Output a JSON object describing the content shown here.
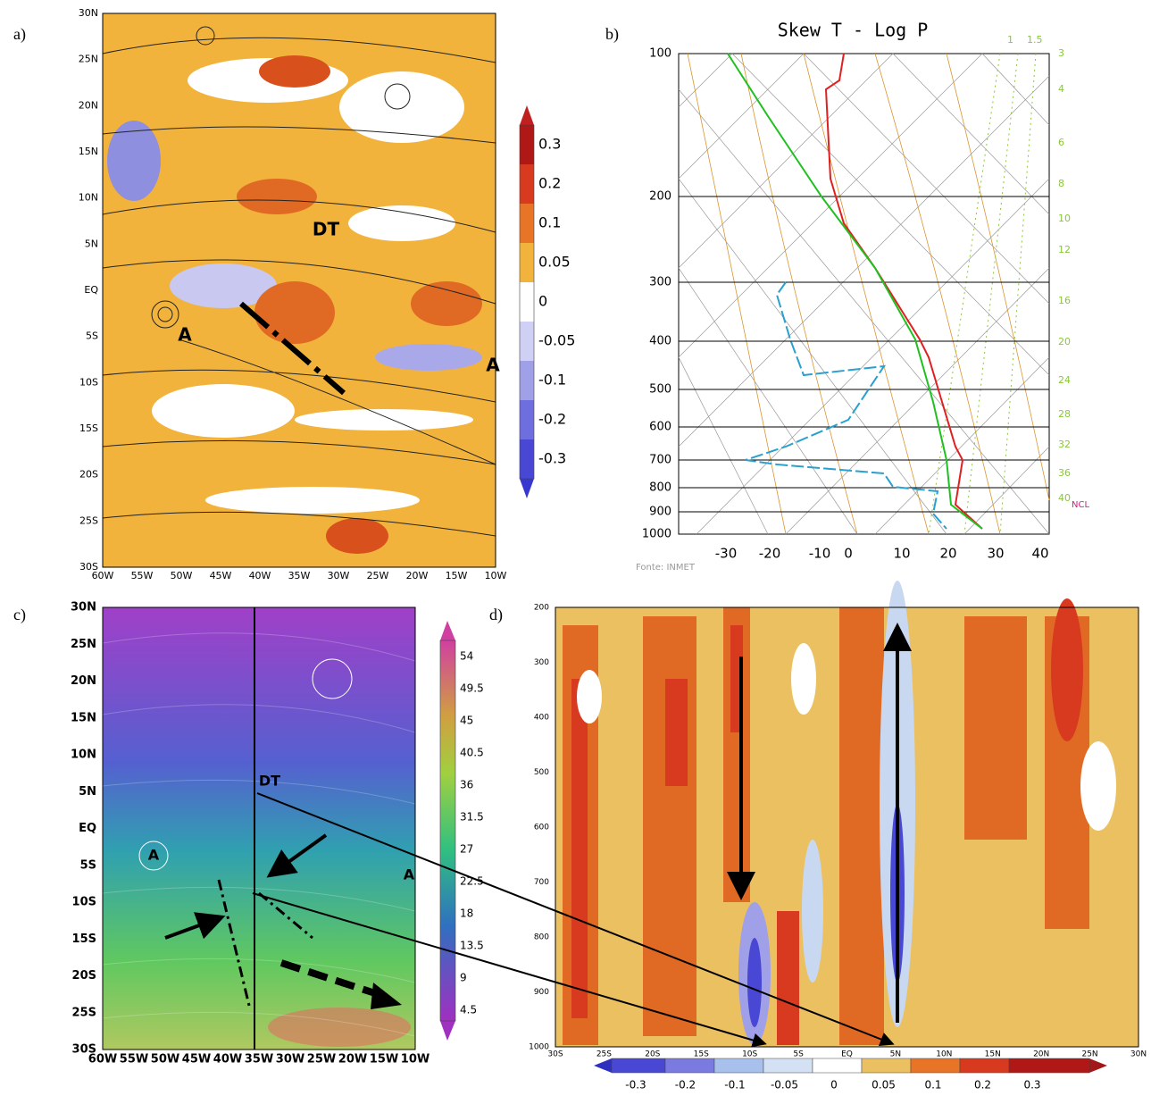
{
  "panels": [
    {
      "label": "a)",
      "lat_labels": [
        "30N",
        "25N",
        "20N",
        "15N",
        "10N",
        "5N",
        "EQ",
        "5S",
        "10S",
        "15S",
        "20S",
        "25S",
        "30S"
      ],
      "lon_labels": [
        "60W",
        "55W",
        "50W",
        "45W",
        "40W",
        "35W",
        "30W",
        "25W",
        "20W",
        "15W",
        "10W"
      ],
      "annotations": [
        "DT",
        "A",
        "A"
      ],
      "colorbar": [
        "0.3",
        "0.2",
        "0.1",
        "0.05",
        "0",
        "-0.05",
        "-0.1",
        "-0.2",
        "-0.3"
      ]
    },
    {
      "label": "b)",
      "title": "Skew T - Log P",
      "pressure_labels": [
        "100",
        "200",
        "300",
        "400",
        "500",
        "600",
        "700",
        "800",
        "900",
        "1000"
      ],
      "temperature_labels": [
        "-30",
        "-20",
        "-10",
        "0",
        "10",
        "20",
        "30",
        "40"
      ],
      "mixing_ratio_labels": [
        "1",
        "1.5",
        "3",
        "4",
        "6",
        "8",
        "10",
        "12",
        "16",
        "20",
        "24",
        "28",
        "32",
        "36",
        "40"
      ],
      "lcl_label": "NCL",
      "source": "Fonte: INMET"
    },
    {
      "label": "c)",
      "lat_labels": [
        "30N",
        "25N",
        "20N",
        "15N",
        "10N",
        "5N",
        "EQ",
        "5S",
        "10S",
        "15S",
        "20S",
        "25S",
        "30S"
      ],
      "lon_labels": [
        "60W",
        "55W",
        "50W",
        "45W",
        "40W",
        "35W",
        "30W",
        "25W",
        "20W",
        "15W",
        "10W"
      ],
      "annotations": [
        "DT",
        "A",
        "A"
      ],
      "colorbar": [
        "54",
        "49.5",
        "45",
        "40.5",
        "36",
        "31.5",
        "27",
        "22.5",
        "18",
        "13.5",
        "9",
        "4.5"
      ]
    },
    {
      "label": "d)",
      "level_labels": [
        "200",
        "300",
        "400",
        "500",
        "600",
        "700",
        "800",
        "900",
        "1000"
      ],
      "lat_labels": [
        "30S",
        "25S",
        "20S",
        "15S",
        "10S",
        "5S",
        "EQ",
        "5N",
        "10N",
        "15N",
        "20N",
        "25N",
        "30N"
      ],
      "colorbar": [
        "-0.3",
        "-0.2",
        "-0.1",
        "-0.05",
        "0",
        "0.05",
        "0.1",
        "0.2",
        "0.3"
      ]
    }
  ]
}
